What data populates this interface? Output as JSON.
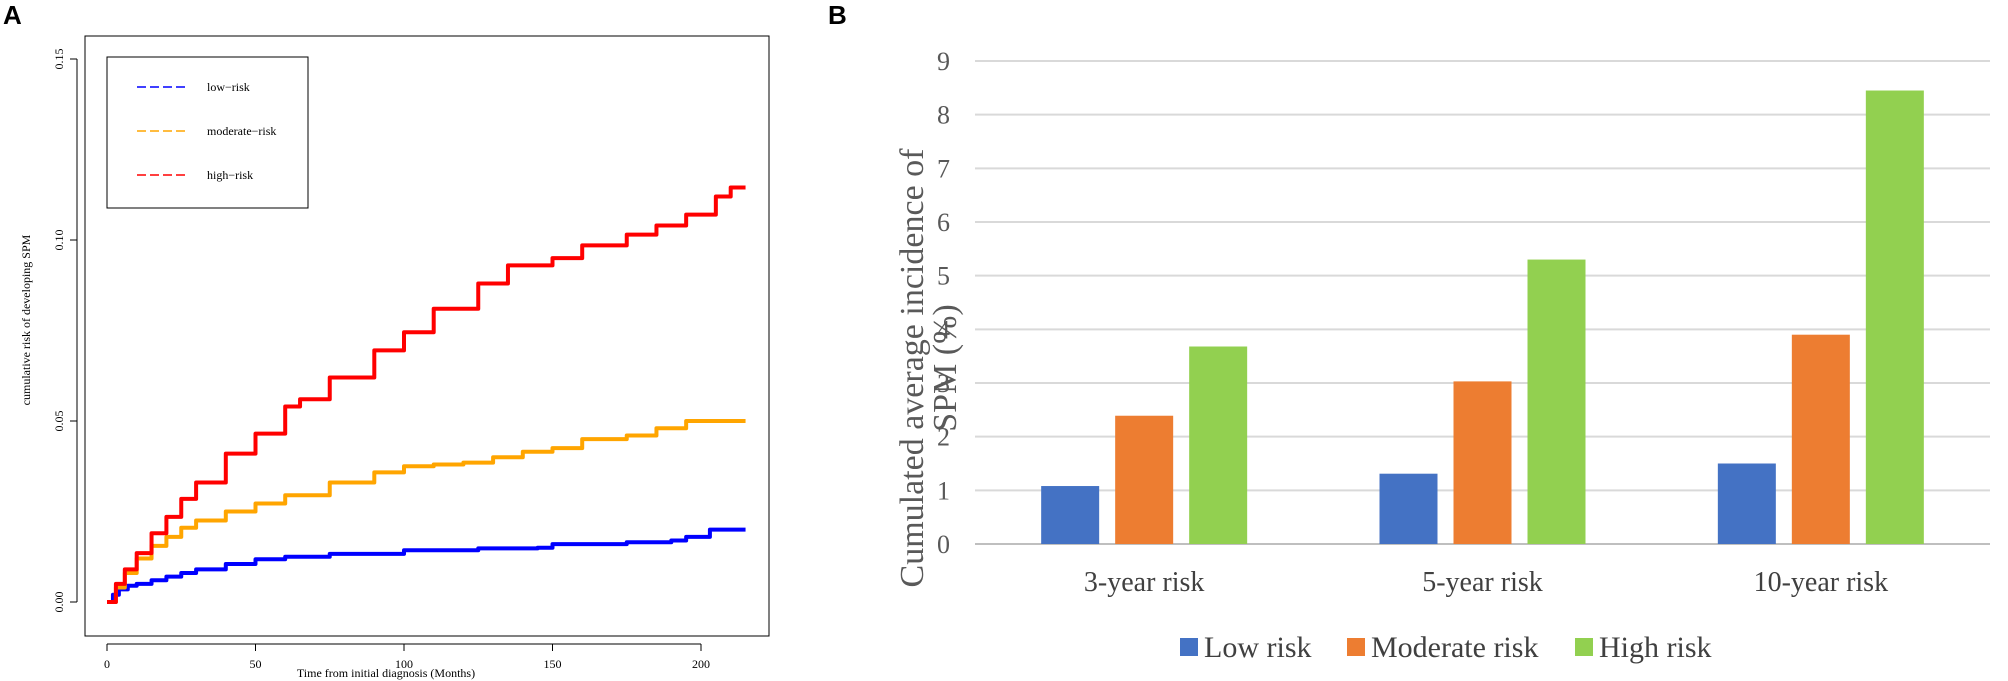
{
  "chart_data": [
    {
      "panel": "A",
      "type": "line",
      "title": "",
      "xlabel": "Time from initial diagnosis (Months)",
      "ylabel": "cumulative risk of developing SPM",
      "xlim": [
        0,
        215
      ],
      "ylim": [
        0,
        0.15
      ],
      "xticks": [
        "0",
        "50",
        "100",
        "150",
        "200"
      ],
      "yticks": [
        "0.00",
        "0.05",
        "0.10",
        "0.15"
      ],
      "legend_position": "top-left",
      "series": [
        {
          "name": "low−risk",
          "color": "#0000ff",
          "points": [
            [
              0,
              0
            ],
            [
              2,
              0.002
            ],
            [
              4,
              0.0035
            ],
            [
              7,
              0.0045
            ],
            [
              10,
              0.005
            ],
            [
              15,
              0.006
            ],
            [
              20,
              0.007
            ],
            [
              25,
              0.008
            ],
            [
              30,
              0.009
            ],
            [
              40,
              0.0105
            ],
            [
              50,
              0.0118
            ],
            [
              60,
              0.0125
            ],
            [
              75,
              0.0133
            ],
            [
              100,
              0.0143
            ],
            [
              125,
              0.0148
            ],
            [
              145,
              0.015
            ],
            [
              150,
              0.016
            ],
            [
              175,
              0.0165
            ],
            [
              190,
              0.017
            ],
            [
              195,
              0.018
            ],
            [
              200,
              0.018
            ],
            [
              203,
              0.02
            ],
            [
              215,
              0.02
            ]
          ]
        },
        {
          "name": "moderate−risk",
          "color": "#ffa500",
          "points": [
            [
              0,
              0
            ],
            [
              3,
              0.004
            ],
            [
              6,
              0.008
            ],
            [
              10,
              0.012
            ],
            [
              15,
              0.0155
            ],
            [
              20,
              0.018
            ],
            [
              25,
              0.0205
            ],
            [
              30,
              0.0225
            ],
            [
              40,
              0.025
            ],
            [
              50,
              0.0272
            ],
            [
              60,
              0.0295
            ],
            [
              75,
              0.033
            ],
            [
              90,
              0.0358
            ],
            [
              100,
              0.0375
            ],
            [
              110,
              0.038
            ],
            [
              120,
              0.0385
            ],
            [
              130,
              0.04
            ],
            [
              140,
              0.0415
            ],
            [
              150,
              0.0425
            ],
            [
              160,
              0.045
            ],
            [
              175,
              0.046
            ],
            [
              185,
              0.048
            ],
            [
              195,
              0.05
            ],
            [
              215,
              0.05
            ]
          ]
        },
        {
          "name": "high−risk",
          "color": "#ff0000",
          "points": [
            [
              0,
              0
            ],
            [
              3,
              0.005
            ],
            [
              6,
              0.009
            ],
            [
              10,
              0.0135
            ],
            [
              15,
              0.019
            ],
            [
              20,
              0.0235
            ],
            [
              25,
              0.0285
            ],
            [
              30,
              0.033
            ],
            [
              40,
              0.041
            ],
            [
              50,
              0.0465
            ],
            [
              60,
              0.054
            ],
            [
              65,
              0.056
            ],
            [
              75,
              0.062
            ],
            [
              90,
              0.0695
            ],
            [
              100,
              0.0745
            ],
            [
              110,
              0.081
            ],
            [
              125,
              0.088
            ],
            [
              135,
              0.093
            ],
            [
              150,
              0.095
            ],
            [
              160,
              0.0985
            ],
            [
              175,
              0.1015
            ],
            [
              185,
              0.104
            ],
            [
              195,
              0.107
            ],
            [
              200,
              0.107
            ],
            [
              205,
              0.112
            ],
            [
              210,
              0.1145
            ],
            [
              215,
              0.1145
            ]
          ]
        }
      ]
    },
    {
      "panel": "B",
      "type": "bar",
      "title": "",
      "xlabel": "",
      "ylabel": "Cumulated average incidence of SPM (%)",
      "ylabel_lines": [
        "Cumulated average incidence of",
        "SPM (%)"
      ],
      "ylim": [
        0,
        9
      ],
      "yticks": [
        "0",
        "1",
        "2",
        "3",
        "4",
        "5",
        "6",
        "7",
        "8",
        "9"
      ],
      "grid": true,
      "legend_position": "bottom",
      "categories": [
        "3-year risk",
        "5-year risk",
        "10-year risk"
      ],
      "series": [
        {
          "name": "Low risk",
          "color": "#4472c4",
          "values": [
            1.08,
            1.31,
            1.5
          ]
        },
        {
          "name": "Moderate risk",
          "color": "#ed7d31",
          "values": [
            2.39,
            3.03,
            3.9
          ]
        },
        {
          "name": "High risk",
          "color": "#92d050",
          "values": [
            3.68,
            5.3,
            8.45
          ]
        }
      ]
    }
  ],
  "panels": {
    "a_letter": "A",
    "b_letter": "B"
  }
}
